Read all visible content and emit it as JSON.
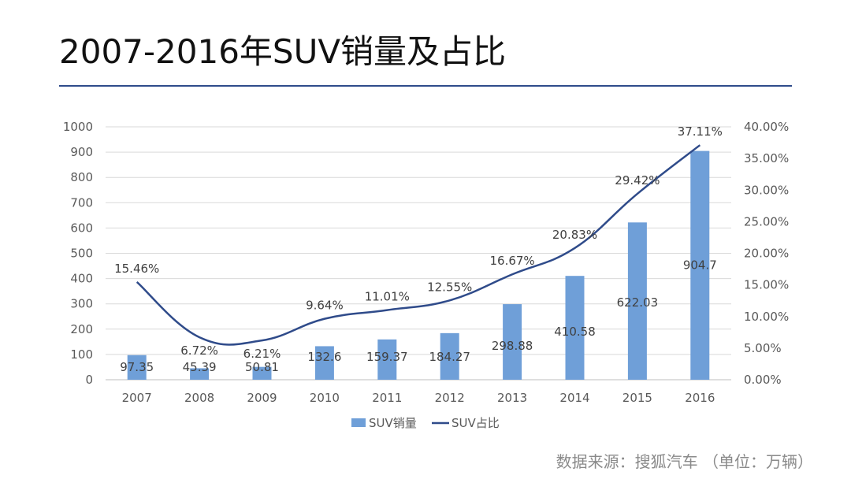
{
  "title": "2007-2016年SUV销量及占比",
  "source": "数据来源：搜狐汽车 （单位：万辆）",
  "colors": {
    "bar": "#6f9fd8",
    "line": "#2f4b8a",
    "rule": "#2f4b8a",
    "grid": "#d9d9d9"
  },
  "chart_data": {
    "type": "bar",
    "categories": [
      "2007",
      "2008",
      "2009",
      "2010",
      "2011",
      "2012",
      "2013",
      "2014",
      "2015",
      "2016"
    ],
    "series": [
      {
        "name": "SUV销量",
        "type": "bar",
        "axis": "left",
        "values": [
          97.35,
          45.39,
          50.81,
          132.6,
          159.37,
          184.27,
          298.88,
          410.58,
          622.03,
          904.7
        ],
        "labels": [
          "97.35",
          "45.39",
          "50.81",
          "132.6",
          "159.37",
          "184.27",
          "298.88",
          "410.58",
          "622.03",
          "904.7"
        ]
      },
      {
        "name": "SUV占比",
        "type": "line",
        "axis": "right",
        "values": [
          15.46,
          6.72,
          6.21,
          9.64,
          11.01,
          12.55,
          16.67,
          20.83,
          29.42,
          37.11
        ],
        "labels": [
          "15.46%",
          "6.72%",
          "6.21%",
          "9.64%",
          "11.01%",
          "12.55%",
          "16.67%",
          "20.83%",
          "29.42%",
          "37.11%"
        ]
      }
    ],
    "y_left": {
      "min": 0,
      "max": 1000,
      "step": 100,
      "ticks": [
        "0",
        "100",
        "200",
        "300",
        "400",
        "500",
        "600",
        "700",
        "800",
        "900",
        "1000"
      ]
    },
    "y_right": {
      "min": 0,
      "max": 40,
      "step": 5,
      "ticks": [
        "0.00%",
        "5.00%",
        "10.00%",
        "15.00%",
        "20.00%",
        "25.00%",
        "30.00%",
        "35.00%",
        "40.00%"
      ]
    },
    "grid": true,
    "legend_position": "bottom"
  }
}
